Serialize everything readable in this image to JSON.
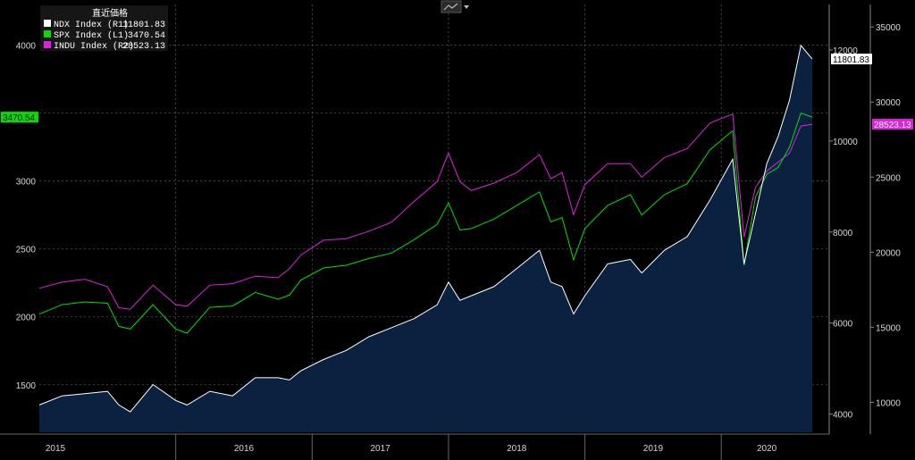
{
  "toolbar": {
    "chart_icon": "line-chart-icon",
    "menu_icon": "dropdown-arrow-icon"
  },
  "chart_data": {
    "type": "area",
    "legend": {
      "title": "直近価格",
      "placement": "top-left"
    },
    "grid": true,
    "x": {
      "tick_labels": [
        "2015",
        "2016",
        "2017",
        "2018",
        "2019",
        "2020"
      ],
      "range": [
        "2015-01",
        "2020-09"
      ]
    },
    "axes": {
      "left": {
        "series": "SPX Index (L1)",
        "ylim": [
          1150,
          4300
        ],
        "ticks": [
          1500,
          2000,
          2500,
          3000,
          3500,
          4000
        ],
        "tick_labels": [
          "1500",
          "2000",
          "2500",
          "3000",
          "",
          "4000"
        ]
      },
      "right1": {
        "series": "NDX Index (R1)",
        "ylim": [
          3600,
          13000
        ],
        "ticks": [
          4000,
          6000,
          8000,
          10000,
          12000
        ],
        "tick_labels": [
          "4000",
          "6000",
          "8000",
          "10000",
          "12000"
        ]
      },
      "right2": {
        "series": "INDU Index (R2)",
        "ylim": [
          8000,
          36500
        ],
        "ticks": [
          10000,
          15000,
          20000,
          25000,
          30000,
          35000
        ],
        "tick_labels": [
          "10000",
          "15000",
          "20000",
          "25000",
          "30000",
          "35000"
        ]
      }
    },
    "dates": [
      "2015-01",
      "2015-03",
      "2015-05",
      "2015-07",
      "2015-08",
      "2015-09",
      "2015-11",
      "2016-01",
      "2016-02",
      "2016-04",
      "2016-06",
      "2016-08",
      "2016-10",
      "2016-11",
      "2016-12",
      "2017-02",
      "2017-04",
      "2017-06",
      "2017-08",
      "2017-10",
      "2017-12",
      "2018-01",
      "2018-02",
      "2018-03",
      "2018-05",
      "2018-07",
      "2018-09",
      "2018-10",
      "2018-11",
      "2018-12",
      "2019-01",
      "2019-03",
      "2019-05",
      "2019-06",
      "2019-08",
      "2019-10",
      "2019-12",
      "2020-02",
      "2020-03",
      "2020-04",
      "2020-05",
      "2020-06",
      "2020-07",
      "2020-08",
      "2020-09"
    ],
    "series": [
      {
        "name": "NDX Index (R1)",
        "axis": "right1",
        "color": "#ffffff",
        "fill": "#0a2240",
        "last": "11801.83",
        "last_label": "11801.83",
        "values": [
          4200,
          4400,
          4450,
          4500,
          4200,
          4050,
          4650,
          4300,
          4200,
          4500,
          4400,
          4800,
          4800,
          4750,
          4950,
          5200,
          5400,
          5700,
          5900,
          6100,
          6400,
          6900,
          6500,
          6600,
          6800,
          7200,
          7600,
          6900,
          6800,
          6200,
          6600,
          7300,
          7400,
          7100,
          7600,
          7900,
          8700,
          9600,
          7300,
          8400,
          9500,
          10100,
          10900,
          12100,
          11801.83
        ]
      },
      {
        "name": "SPX Index (L1)",
        "axis": "left",
        "color": "#00e000",
        "last": "3470.54",
        "last_label": "3470.54",
        "values": [
          2020,
          2090,
          2110,
          2100,
          1930,
          1910,
          2090,
          1910,
          1880,
          2070,
          2080,
          2180,
          2130,
          2160,
          2270,
          2360,
          2380,
          2430,
          2470,
          2570,
          2680,
          2840,
          2640,
          2650,
          2720,
          2820,
          2920,
          2700,
          2730,
          2420,
          2650,
          2820,
          2900,
          2750,
          2900,
          2980,
          3230,
          3370,
          2380,
          2880,
          3050,
          3100,
          3250,
          3500,
          3470.54
        ]
      },
      {
        "name": "INDU Index (R2)",
        "axis": "right2",
        "color": "#e020e0",
        "last": "28523.13",
        "last_label": "28523.13",
        "values": [
          17600,
          18000,
          18200,
          17700,
          16300,
          16200,
          17800,
          16500,
          16400,
          17800,
          17900,
          18400,
          18300,
          18900,
          19800,
          20800,
          20900,
          21400,
          22000,
          23400,
          24700,
          26600,
          24700,
          24100,
          24600,
          25300,
          26500,
          24900,
          25300,
          22500,
          24500,
          25900,
          25900,
          25000,
          26300,
          26900,
          28600,
          29200,
          21000,
          24300,
          25400,
          26000,
          26600,
          28400,
          28523.13
        ]
      }
    ]
  }
}
